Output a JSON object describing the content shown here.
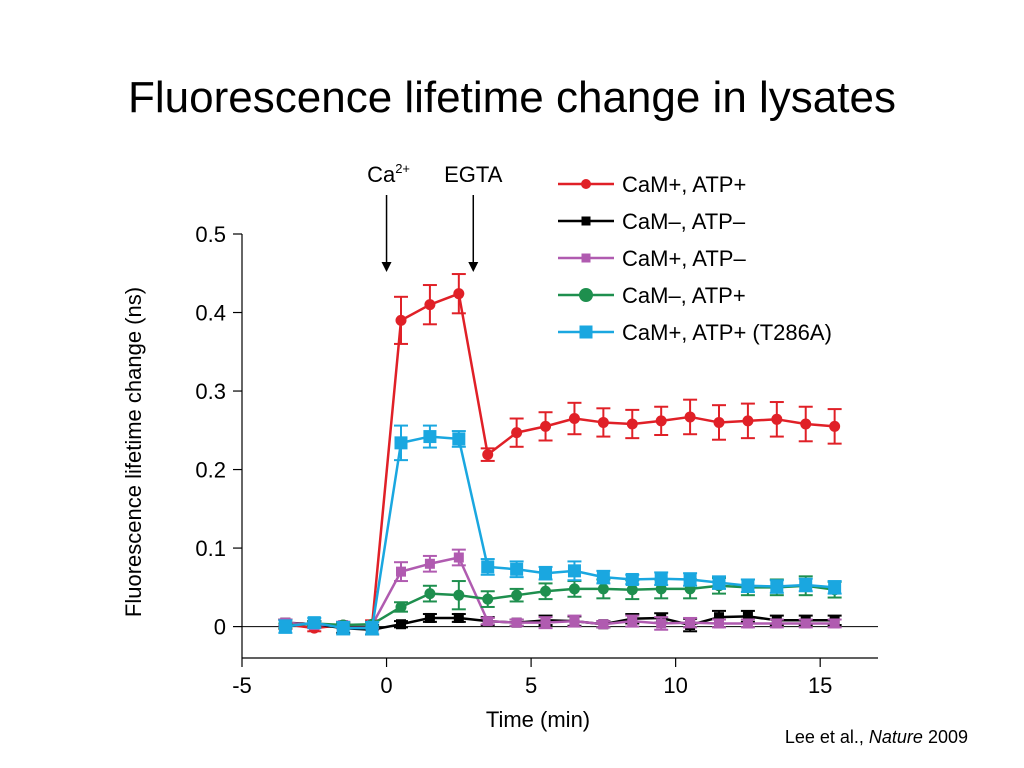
{
  "slide": {
    "title": "Fluorescence lifetime change in lysates",
    "citation": {
      "authors": "Lee et al.,",
      "journal": "Nature",
      "year": "2009"
    }
  },
  "chart_data": {
    "type": "line",
    "xlabel": "Time (min)",
    "ylabel": "Fluorescence lifetime change (ns)",
    "xlim": [
      -5,
      17
    ],
    "ylim": [
      -0.04,
      0.5
    ],
    "xticks": [
      -5,
      0,
      5,
      10,
      15
    ],
    "xtick_labels": [
      "-5",
      "0",
      "5",
      "10",
      "15"
    ],
    "yticks": [
      0,
      0.1,
      0.2,
      0.3,
      0.4,
      0.5
    ],
    "ytick_labels": [
      "0",
      "0.1",
      "0.2",
      "0.3",
      "0.4",
      "0.5"
    ],
    "grid": false,
    "legend_position": "top-right",
    "annotations": [
      {
        "text": "Ca",
        "superscript": "2+",
        "x": 0
      },
      {
        "text": "EGTA",
        "x": 3
      }
    ],
    "series": [
      {
        "name": "CaM+, ATP+",
        "color": "#e02027",
        "marker": "circle",
        "x": [
          -3.5,
          -2.5,
          -1.5,
          -0.5,
          0.5,
          1.5,
          2.5,
          3.5,
          4.5,
          5.5,
          6.5,
          7.5,
          8.5,
          9.5,
          10.5,
          11.5,
          12.5,
          13.5,
          14.5,
          15.5
        ],
        "y": [
          0.003,
          -0.002,
          0.002,
          0.002,
          0.39,
          0.41,
          0.424,
          0.219,
          0.247,
          0.255,
          0.265,
          0.26,
          0.258,
          0.262,
          0.267,
          0.26,
          0.262,
          0.264,
          0.258,
          0.255
        ],
        "err": [
          0.006,
          0.004,
          0.004,
          0.006,
          0.03,
          0.025,
          0.025,
          0.008,
          0.018,
          0.018,
          0.02,
          0.018,
          0.018,
          0.018,
          0.022,
          0.022,
          0.022,
          0.022,
          0.022,
          0.022
        ]
      },
      {
        "name": "CaM–, ATP–",
        "color": "#000000",
        "marker": "square",
        "x": [
          -3.5,
          -2.5,
          -1.5,
          -0.5,
          0.5,
          1.5,
          2.5,
          3.5,
          4.5,
          5.5,
          6.5,
          7.5,
          8.5,
          9.5,
          10.5,
          11.5,
          12.5,
          13.5,
          14.5,
          15.5
        ],
        "y": [
          0.005,
          0.003,
          -0.002,
          -0.004,
          0.003,
          0.011,
          0.011,
          0.007,
          0.005,
          0.008,
          0.007,
          0.003,
          0.01,
          0.011,
          0.002,
          0.012,
          0.013,
          0.008,
          0.008,
          0.008
        ],
        "err": [
          0.004,
          0.004,
          0.006,
          0.006,
          0.004,
          0.005,
          0.005,
          0.005,
          0.004,
          0.006,
          0.006,
          0.004,
          0.006,
          0.006,
          0.008,
          0.008,
          0.007,
          0.006,
          0.006,
          0.006
        ]
      },
      {
        "name": "CaM+, ATP–",
        "color": "#b05bb0",
        "marker": "square",
        "x": [
          -3.5,
          -2.5,
          -1.5,
          -0.5,
          0.5,
          1.5,
          2.5,
          3.5,
          4.5,
          5.5,
          6.5,
          7.5,
          8.5,
          9.5,
          10.5,
          11.5,
          12.5,
          13.5,
          14.5,
          15.5
        ],
        "y": [
          0.005,
          0.002,
          0.002,
          0.002,
          0.07,
          0.08,
          0.088,
          0.007,
          0.005,
          0.005,
          0.007,
          0.003,
          0.007,
          0.004,
          0.005,
          0.004,
          0.004,
          0.004,
          0.004,
          0.004
        ],
        "err": [
          0.004,
          0.004,
          0.004,
          0.004,
          0.012,
          0.01,
          0.01,
          0.004,
          0.004,
          0.007,
          0.007,
          0.004,
          0.007,
          0.008,
          0.006,
          0.005,
          0.005,
          0.005,
          0.005,
          0.005
        ]
      },
      {
        "name": "CaM–, ATP+",
        "color": "#1e8f4e",
        "marker": "circle",
        "x": [
          -3.5,
          -2.5,
          -1.5,
          -0.5,
          0.5,
          1.5,
          2.5,
          3.5,
          4.5,
          5.5,
          6.5,
          7.5,
          8.5,
          9.5,
          10.5,
          11.5,
          12.5,
          13.5,
          14.5,
          15.5
        ],
        "y": [
          0.001,
          0.004,
          0.002,
          0.003,
          0.025,
          0.042,
          0.04,
          0.035,
          0.04,
          0.045,
          0.048,
          0.048,
          0.047,
          0.048,
          0.048,
          0.052,
          0.05,
          0.05,
          0.052,
          0.047
        ],
        "err": [
          0.003,
          0.003,
          0.003,
          0.003,
          0.006,
          0.01,
          0.018,
          0.01,
          0.008,
          0.01,
          0.01,
          0.012,
          0.012,
          0.012,
          0.012,
          0.01,
          0.01,
          0.01,
          0.012,
          0.01
        ]
      },
      {
        "name": "CaM+, ATP+  (T286A)",
        "color": "#1aa7e0",
        "marker": "square",
        "x": [
          -3.5,
          -2.5,
          -1.5,
          -0.5,
          0.5,
          1.5,
          2.5,
          3.5,
          4.5,
          5.5,
          6.5,
          7.5,
          8.5,
          9.5,
          10.5,
          11.5,
          12.5,
          13.5,
          14.5,
          15.5
        ],
        "y": [
          0.0,
          0.005,
          -0.002,
          -0.002,
          0.234,
          0.242,
          0.239,
          0.076,
          0.073,
          0.068,
          0.071,
          0.063,
          0.06,
          0.061,
          0.06,
          0.056,
          0.052,
          0.051,
          0.053,
          0.05
        ],
        "err": [
          0.008,
          0.006,
          0.008,
          0.008,
          0.022,
          0.014,
          0.01,
          0.01,
          0.01,
          0.008,
          0.012,
          0.008,
          0.006,
          0.008,
          0.008,
          0.008,
          0.008,
          0.008,
          0.008,
          0.008
        ]
      }
    ]
  }
}
